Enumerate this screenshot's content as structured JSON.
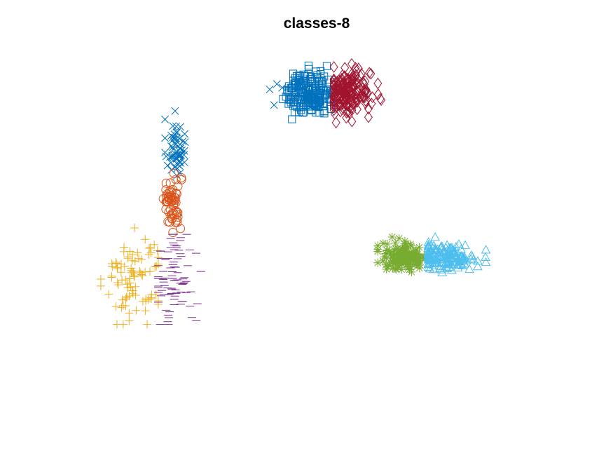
{
  "chart_data": {
    "type": "scatter",
    "title": "classes-8",
    "xlabel": "",
    "ylabel": "",
    "axes_visible": false,
    "grid": false,
    "legend": "none",
    "xlim": [
      -6,
      8
    ],
    "ylim": [
      -6,
      6
    ],
    "series": [
      {
        "marker": "x",
        "color": "#0072BD",
        "clusters": [
          {
            "cx": -3.2,
            "cy": 2.5,
            "sx": 0.15,
            "sy": 0.45,
            "n": 60,
            "xrange": [
              -3.5,
              -2.9
            ],
            "yrange": [
              1.6,
              4.0
            ]
          },
          {
            "cx": 0.0,
            "cy": 4.2,
            "sx": 0.25,
            "sy": 0.3,
            "n": 4,
            "xrange": [
              -0.4,
              0.0
            ],
            "yrange": [
              3.8,
              4.7
            ]
          }
        ]
      },
      {
        "marker": "o",
        "color": "#D95319",
        "clusters": [
          {
            "cx": -3.3,
            "cy": 0.8,
            "sx": 0.14,
            "sy": 0.45,
            "n": 60,
            "xrange": [
              -3.55,
              -3.0
            ],
            "yrange": [
              -0.2,
              1.7
            ]
          }
        ]
      },
      {
        "marker": "+",
        "color": "#EDB120",
        "clusters": [
          {
            "cx": -4.4,
            "cy": -1.5,
            "sx": 0.45,
            "sy": 0.75,
            "n": 90,
            "xrange": [
              -5.4,
              -3.7
            ],
            "yrange": [
              -3.0,
              0.0
            ]
          }
        ]
      },
      {
        "marker": "_",
        "color": "#7E2F8E",
        "clusters": [
          {
            "cx": -3.2,
            "cy": -1.6,
            "sx": 0.3,
            "sy": 0.75,
            "n": 90,
            "xrange": [
              -3.7,
              -2.3
            ],
            "yrange": [
              -3.0,
              -0.2
            ]
          }
        ]
      },
      {
        "marker": "*",
        "color": "#77AC30",
        "clusters": [
          {
            "cx": 3.6,
            "cy": -0.9,
            "sx": 0.35,
            "sy": 0.22,
            "n": 160,
            "xrange": [
              2.8,
              4.3
            ],
            "yrange": [
              -1.6,
              -0.1
            ]
          }
        ]
      },
      {
        "marker": "^",
        "color": "#4DBEEE",
        "clusters": [
          {
            "cx": 4.8,
            "cy": -0.9,
            "sx": 0.45,
            "sy": 0.2,
            "n": 160,
            "xrange": [
              4.3,
              6.0
            ],
            "yrange": [
              -1.4,
              -0.3
            ]
          }
        ]
      },
      {
        "marker": "s",
        "color": "#0072BD",
        "clusters": [
          {
            "cx": 0.8,
            "cy": 4.2,
            "sx": 0.35,
            "sy": 0.33,
            "n": 200,
            "xrange": [
              -0.1,
              1.5
            ],
            "yrange": [
              3.1,
              5.1
            ]
          }
        ]
      },
      {
        "marker": "d",
        "color": "#A2142F",
        "clusters": [
          {
            "cx": 1.9,
            "cy": 4.2,
            "sx": 0.35,
            "sy": 0.33,
            "n": 200,
            "xrange": [
              1.5,
              2.9
            ],
            "yrange": [
              3.1,
              5.1
            ]
          }
        ]
      }
    ]
  }
}
